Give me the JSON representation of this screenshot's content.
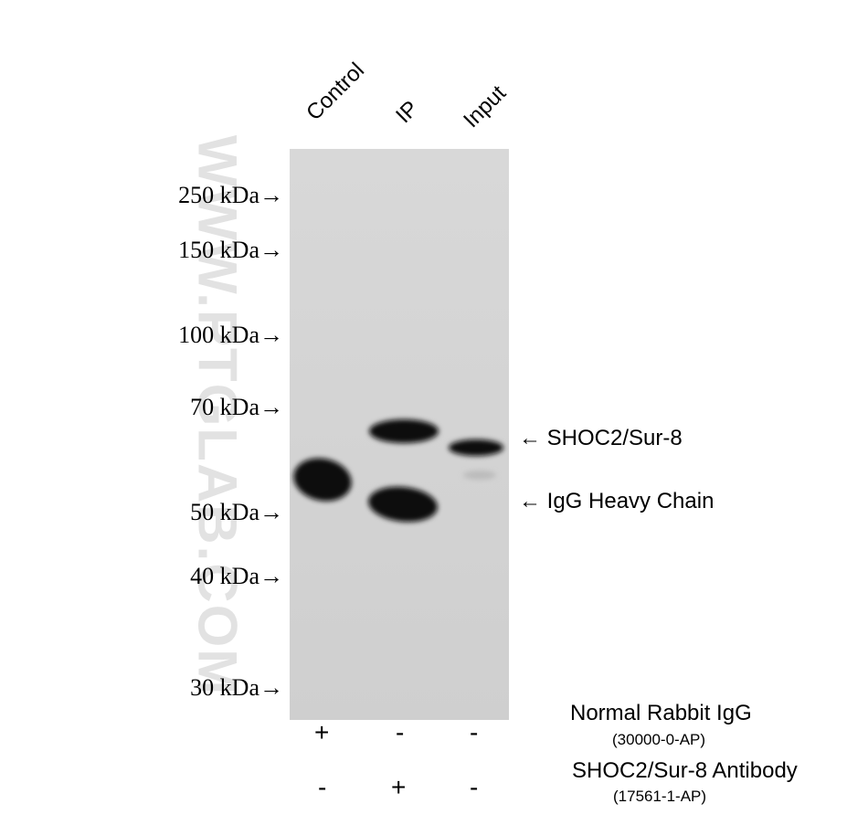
{
  "watermark": "WWW.PTGLAB.COM",
  "lanes": [
    "Control",
    "IP",
    "Input"
  ],
  "markers": [
    "250 kDa→",
    "150 kDa→",
    "100 kDa→",
    "70 kDa→",
    "50 kDa→",
    "40 kDa→",
    "30 kDa→"
  ],
  "band_labels": [
    "← SHOC2/Sur-8",
    "← IgG Heavy Chain"
  ],
  "conditions": [
    {
      "name": "Normal Rabbit IgG",
      "catalog": "(30000-0-AP)",
      "signs": [
        "+",
        "-",
        "-"
      ]
    },
    {
      "name": "SHOC2/Sur-8 Antibody",
      "catalog": "(17561-1-AP)",
      "signs": [
        "-",
        "+",
        "-"
      ]
    }
  ],
  "colors": {
    "membrane": "#d2d2d2",
    "band": "#0a0a0a"
  }
}
